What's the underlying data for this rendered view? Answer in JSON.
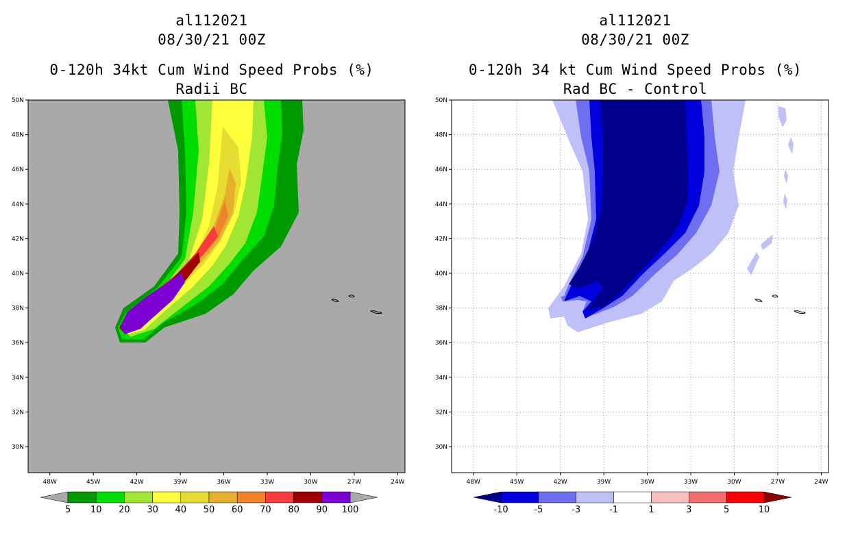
{
  "panels": [
    {
      "title_storm": "al112021",
      "title_time": "08/30/21 00Z",
      "title_product": "0-120h 34kt Cum Wind Speed Probs (%)",
      "title_sub": "Radii BC"
    },
    {
      "title_storm": "al112021",
      "title_time": "08/30/21 00Z",
      "title_product": "0-120h 34 kt Cum Wind Speed Probs (%)",
      "title_sub": "Rad BC - Control"
    }
  ],
  "chart_data": [
    {
      "type": "heatmap",
      "title": "0-120h 34kt Cum Wind Speed Probs (%)",
      "subtitle": "Radii BC",
      "x_ticks": [
        "48W",
        "45W",
        "42W",
        "39W",
        "36W",
        "33W",
        "30W",
        "27W",
        "24W"
      ],
      "y_ticks": [
        "50N",
        "48N",
        "46N",
        "44N",
        "42N",
        "40N",
        "38N",
        "36N",
        "34N",
        "32N",
        "30N"
      ],
      "xlim": [
        -49.5,
        -23.5
      ],
      "ylim": [
        28.5,
        50
      ],
      "colorbar_levels": [
        "5",
        "10",
        "20",
        "30",
        "40",
        "50",
        "60",
        "70",
        "80",
        "90",
        "100"
      ],
      "colorbar_colors": [
        "#009a00",
        "#00dd00",
        "#a0e632",
        "#ffff3c",
        "#e6dc32",
        "#e6af2d",
        "#f08228",
        "#fa3c3c",
        "#a00000",
        "#7d00d2"
      ],
      "background_color": "#a9a9a9",
      "islands": [
        [
          -28.2,
          38.5
        ],
        [
          -27.0,
          38.7
        ],
        [
          -25.5,
          37.8
        ]
      ]
    },
    {
      "type": "heatmap",
      "title": "0-120h 34 kt Cum Wind Speed Probs (%)",
      "subtitle": "Rad BC - Control",
      "x_ticks": [
        "48W",
        "45W",
        "42W",
        "39W",
        "36W",
        "33W",
        "30W",
        "27W",
        "24W"
      ],
      "y_ticks": [
        "50N",
        "48N",
        "46N",
        "44N",
        "42N",
        "40N",
        "38N",
        "36N",
        "34N",
        "32N",
        "30N"
      ],
      "xlim": [
        -49.5,
        -23.5
      ],
      "ylim": [
        28.5,
        50
      ],
      "colorbar_levels": [
        "-10",
        "-5",
        "-3",
        "-1",
        "1",
        "3",
        "5",
        "10"
      ],
      "colorbar_colors": [
        "#0000dc",
        "#6e6ef0",
        "#c0c0f8",
        "#ffffff",
        "#fac0c0",
        "#f06e6e",
        "#fa0000"
      ],
      "colorbar_end_low": "#00008c",
      "colorbar_end_high": "#8c0000",
      "background_color": "#ffffff",
      "islands": [
        [
          -28.2,
          38.5
        ],
        [
          -27.0,
          38.7
        ],
        [
          -25.5,
          37.8
        ]
      ]
    }
  ]
}
